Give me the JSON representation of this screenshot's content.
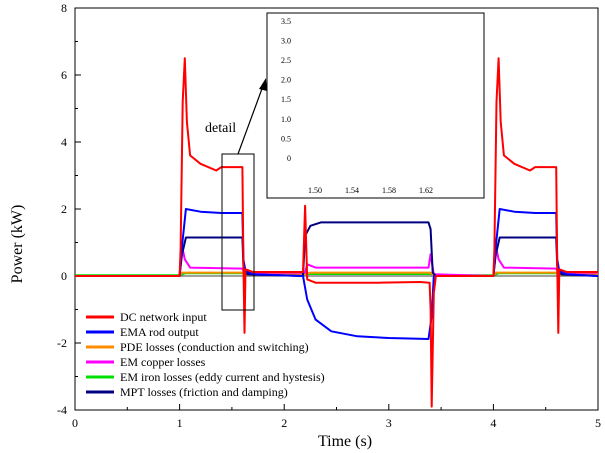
{
  "chart_data": {
    "type": "line",
    "title": "",
    "xlabel": "Time (s)",
    "ylabel": "Power (kW)",
    "xlim": [
      0,
      5
    ],
    "ylim": [
      -4,
      8
    ],
    "xticks": [
      0,
      1,
      2,
      3,
      4,
      5
    ],
    "yticks": [
      -4,
      -2,
      0,
      2,
      4,
      6,
      8
    ],
    "grid": false,
    "legend_position": "bottom-left",
    "annotation": "detail",
    "series": [
      {
        "name": "DC network input",
        "color": "#ff0000",
        "points": [
          [
            0,
            0
          ],
          [
            1.0,
            0
          ],
          [
            1.01,
            0.8
          ],
          [
            1.03,
            5.2
          ],
          [
            1.05,
            6.5
          ],
          [
            1.07,
            4.6
          ],
          [
            1.1,
            3.6
          ],
          [
            1.2,
            3.35
          ],
          [
            1.35,
            3.15
          ],
          [
            1.4,
            3.25
          ],
          [
            1.5,
            3.25
          ],
          [
            1.6,
            3.25
          ],
          [
            1.61,
            0.4
          ],
          [
            1.62,
            -1.7
          ],
          [
            1.63,
            0.2
          ],
          [
            1.7,
            0.12
          ],
          [
            2.18,
            0.12
          ],
          [
            2.2,
            2.1
          ],
          [
            2.22,
            -0.1
          ],
          [
            2.3,
            -0.2
          ],
          [
            2.9,
            -0.2
          ],
          [
            3.3,
            -0.18
          ],
          [
            3.39,
            -0.2
          ],
          [
            3.4,
            -1.0
          ],
          [
            3.41,
            -3.9
          ],
          [
            3.43,
            -0.5
          ],
          [
            3.45,
            0
          ],
          [
            4.0,
            0
          ],
          [
            4.01,
            0.8
          ],
          [
            4.03,
            5.2
          ],
          [
            4.05,
            6.5
          ],
          [
            4.07,
            4.6
          ],
          [
            4.1,
            3.6
          ],
          [
            4.2,
            3.35
          ],
          [
            4.35,
            3.15
          ],
          [
            4.4,
            3.25
          ],
          [
            4.5,
            3.25
          ],
          [
            4.6,
            3.25
          ],
          [
            4.61,
            0.4
          ],
          [
            4.62,
            -1.7
          ],
          [
            4.63,
            0.2
          ],
          [
            4.7,
            0.12
          ],
          [
            5,
            0.12
          ]
        ]
      },
      {
        "name": "EMA rod output",
        "color": "#0000ff",
        "points": [
          [
            0,
            0
          ],
          [
            1.0,
            0
          ],
          [
            1.02,
            0.8
          ],
          [
            1.06,
            2.0
          ],
          [
            1.2,
            1.92
          ],
          [
            1.4,
            1.88
          ],
          [
            1.6,
            1.88
          ],
          [
            1.61,
            0.5
          ],
          [
            1.63,
            0.15
          ],
          [
            1.7,
            0.05
          ],
          [
            2.18,
            0
          ],
          [
            2.22,
            -0.7
          ],
          [
            2.3,
            -1.3
          ],
          [
            2.45,
            -1.65
          ],
          [
            2.7,
            -1.8
          ],
          [
            3.0,
            -1.85
          ],
          [
            3.38,
            -1.88
          ],
          [
            3.41,
            -1.2
          ],
          [
            3.43,
            0
          ],
          [
            4.0,
            0
          ],
          [
            4.02,
            0.8
          ],
          [
            4.06,
            2.0
          ],
          [
            4.2,
            1.92
          ],
          [
            4.4,
            1.88
          ],
          [
            4.6,
            1.88
          ],
          [
            4.61,
            0.5
          ],
          [
            4.63,
            0.15
          ],
          [
            4.7,
            0.05
          ],
          [
            5,
            0
          ]
        ]
      },
      {
        "name": "PDE losses (conduction and switching)",
        "color": "#ff8c00",
        "points": [
          [
            0,
            0
          ],
          [
            1.0,
            0
          ],
          [
            1.02,
            0.1
          ],
          [
            1.6,
            0.1
          ],
          [
            1.62,
            0.05
          ],
          [
            2.2,
            0.05
          ],
          [
            2.25,
            0.1
          ],
          [
            3.4,
            0.1
          ],
          [
            3.42,
            0.02
          ],
          [
            4.0,
            0
          ],
          [
            4.02,
            0.1
          ],
          [
            4.6,
            0.1
          ],
          [
            4.62,
            0.05
          ],
          [
            5,
            0.05
          ]
        ]
      },
      {
        "name": "EM copper losses",
        "color": "#ff00ff",
        "points": [
          [
            0,
            0
          ],
          [
            1.0,
            0
          ],
          [
            1.01,
            0.3
          ],
          [
            1.03,
            0.8
          ],
          [
            1.05,
            0.5
          ],
          [
            1.1,
            0.25
          ],
          [
            1.6,
            0.22
          ],
          [
            1.62,
            0.1
          ],
          [
            2.2,
            0.1
          ],
          [
            2.22,
            0.35
          ],
          [
            2.3,
            0.25
          ],
          [
            3.38,
            0.25
          ],
          [
            3.4,
            0.65
          ],
          [
            3.43,
            0.05
          ],
          [
            4.0,
            0
          ],
          [
            4.01,
            0.3
          ],
          [
            4.03,
            0.8
          ],
          [
            4.05,
            0.5
          ],
          [
            4.1,
            0.25
          ],
          [
            4.6,
            0.22
          ],
          [
            4.62,
            0.1
          ],
          [
            5,
            0.1
          ]
        ]
      },
      {
        "name": "EM iron losses (eddy current and hystesis)",
        "color": "#00e000",
        "points": [
          [
            0,
            0.02
          ],
          [
            1.0,
            0.02
          ],
          [
            1.05,
            0.08
          ],
          [
            1.6,
            0.08
          ],
          [
            1.65,
            0.06
          ],
          [
            3.4,
            0.06
          ],
          [
            3.45,
            0.02
          ],
          [
            4.0,
            0.02
          ],
          [
            4.05,
            0.08
          ],
          [
            4.6,
            0.08
          ],
          [
            4.65,
            0.06
          ],
          [
            5,
            0.06
          ]
        ]
      },
      {
        "name": "MPT losses (friction and damping)",
        "color": "#000080",
        "points": [
          [
            0,
            0
          ],
          [
            1.0,
            0
          ],
          [
            1.02,
            0.6
          ],
          [
            1.06,
            1.15
          ],
          [
            1.6,
            1.15
          ],
          [
            1.61,
            0.3
          ],
          [
            1.65,
            0.05
          ],
          [
            2.18,
            0
          ],
          [
            2.2,
            1.2
          ],
          [
            2.25,
            1.5
          ],
          [
            2.35,
            1.6
          ],
          [
            3.38,
            1.6
          ],
          [
            3.4,
            1.4
          ],
          [
            3.42,
            0.1
          ],
          [
            3.45,
            0
          ],
          [
            4.0,
            0
          ],
          [
            4.02,
            0.6
          ],
          [
            4.06,
            1.15
          ],
          [
            4.6,
            1.15
          ],
          [
            4.61,
            0.3
          ],
          [
            4.65,
            0.05
          ],
          [
            5,
            0
          ]
        ]
      }
    ],
    "inset": {
      "xticks": [
        "1.50",
        "1.54",
        "1.58",
        "1.62"
      ],
      "yticks": [
        "0",
        "0.5",
        "1.0",
        "1.5",
        "2.0",
        "2.5",
        "3.0",
        "3.5"
      ]
    }
  }
}
